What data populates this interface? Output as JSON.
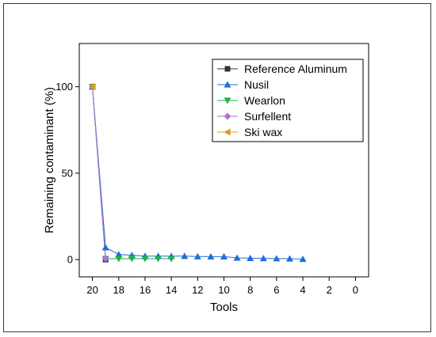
{
  "chart_data": {
    "type": "line",
    "xlabel": "Tools",
    "ylabel": "Remaining contaminant (%)",
    "xlim": [
      21,
      -1
    ],
    "ylim": [
      -10,
      125
    ],
    "x_ticks": [
      20,
      18,
      16,
      14,
      12,
      10,
      8,
      6,
      4,
      2,
      0
    ],
    "y_ticks": [
      0,
      50,
      100
    ],
    "legend_position": "top-right",
    "grid": false,
    "series": [
      {
        "name": "Reference Aluminum",
        "marker": "square",
        "color": "#333333",
        "x": [
          20,
          19
        ],
        "y": [
          100,
          0
        ]
      },
      {
        "name": "Nusil",
        "marker": "triangle-up",
        "color": "#1f6fd6",
        "x": [
          20,
          19,
          18,
          17,
          16,
          15,
          14,
          13,
          12,
          11,
          10,
          9,
          8,
          7,
          6,
          5,
          4
        ],
        "y": [
          100,
          7,
          3,
          2.5,
          2,
          2,
          2,
          2,
          1.8,
          1.7,
          1.7,
          1,
          0.8,
          0.7,
          0.6,
          0.5,
          0.3
        ]
      },
      {
        "name": "Wearlon",
        "marker": "triangle-down",
        "color": "#22b04a",
        "x": [
          20,
          19,
          18,
          17,
          16,
          15,
          14
        ],
        "y": [
          100,
          0.5,
          0.5,
          0.5,
          0.5,
          0.5,
          0.5
        ]
      },
      {
        "name": "Surfellent",
        "marker": "diamond",
        "color": "#b070d8",
        "x": [
          20,
          19
        ],
        "y": [
          100,
          0.5
        ]
      },
      {
        "name": "Ski wax",
        "marker": "triangle-left",
        "color": "#d4a017",
        "x": [
          20
        ],
        "y": [
          100
        ]
      }
    ]
  }
}
